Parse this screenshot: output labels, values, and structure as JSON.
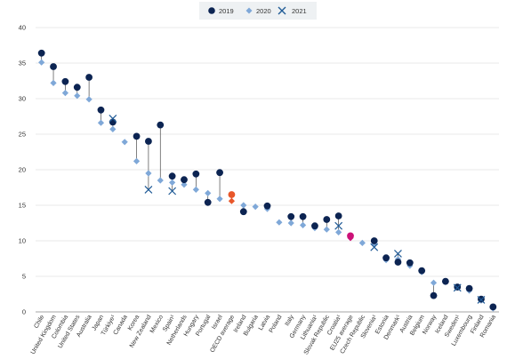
{
  "chart_data": {
    "type": "scatter",
    "title": "",
    "xlabel": "",
    "ylabel": "",
    "ylim": [
      0,
      40
    ],
    "yticks": [
      0,
      5,
      10,
      15,
      20,
      25,
      30,
      35,
      40
    ],
    "grid": true,
    "legend_position": "top-center",
    "categories": [
      "Chile",
      "United Kingdom",
      "Colombia",
      "United States",
      "Australia",
      "Japan",
      "Türkiye¹",
      "Canada",
      "Korea",
      "New Zealand",
      "Mexico",
      "Spain¹",
      "Netherlands",
      "Hungary",
      "Portugal",
      "Israel",
      "OECD average",
      "Ireland",
      "Bulgaria",
      "Latvia",
      "Poland",
      "Italy",
      "Germany",
      "Lithuania¹",
      "Slovak Republic",
      "Croatia¹",
      "EU25 average",
      "Czech Republic",
      "Slovenia¹",
      "Estonia",
      "Denmark¹",
      "Austria",
      "Belgium",
      "Norway",
      "Iceland",
      "Sweden¹",
      "Luxembourg",
      "Finland",
      "Romania"
    ],
    "highlight": {
      "OECD average": "#e8572a",
      "EU25 average": "#cc1178"
    },
    "series": [
      {
        "name": "2019",
        "marker": "circle",
        "color": "#0c2452",
        "values": [
          36.4,
          34.5,
          32.4,
          31.6,
          33.0,
          28.4,
          26.7,
          null,
          24.7,
          24.0,
          26.3,
          19.1,
          18.6,
          19.4,
          15.4,
          19.6,
          16.5,
          14.1,
          null,
          14.9,
          null,
          13.4,
          13.4,
          12.1,
          13.0,
          13.5,
          10.7,
          null,
          10.0,
          7.6,
          7.0,
          6.9,
          5.8,
          2.3,
          4.3,
          3.5,
          3.3,
          1.8,
          0.7
        ]
      },
      {
        "name": "2020",
        "marker": "diamond",
        "color": "#7fa8d8",
        "values": [
          35.1,
          32.2,
          30.8,
          30.4,
          29.9,
          26.6,
          25.7,
          23.9,
          21.2,
          19.5,
          18.5,
          18.2,
          17.9,
          17.2,
          16.7,
          15.9,
          15.6,
          15.0,
          14.8,
          14.5,
          12.6,
          12.5,
          12.2,
          11.8,
          11.6,
          11.2,
          10.4,
          9.7,
          9.5,
          7.3,
          7.4,
          6.5,
          5.6,
          4.1,
          4.2,
          3.4,
          3.0,
          1.6,
          0.5
        ]
      },
      {
        "name": "2021",
        "marker": "x",
        "color": "#1f5a96",
        "values": [
          null,
          null,
          null,
          null,
          null,
          null,
          27.2,
          null,
          null,
          17.2,
          null,
          17.0,
          null,
          null,
          null,
          null,
          null,
          null,
          null,
          null,
          null,
          null,
          null,
          null,
          null,
          12.1,
          null,
          null,
          9.1,
          null,
          8.2,
          null,
          null,
          null,
          null,
          3.4,
          null,
          1.7,
          null
        ]
      }
    ]
  }
}
